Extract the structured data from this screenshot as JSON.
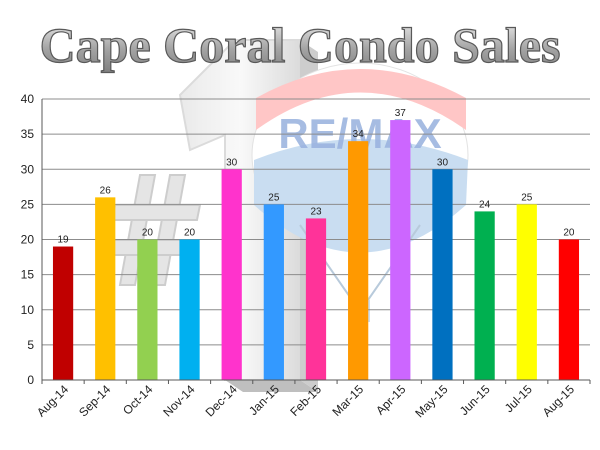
{
  "chart_data": {
    "type": "bar",
    "title": "Cape Coral Condo Sales",
    "xlabel": "",
    "ylabel": "",
    "categories": [
      "Aug-14",
      "Sep-14",
      "Oct-14",
      "Nov-14",
      "Dec-14",
      "Jan-15",
      "Feb-15",
      "Mar-15",
      "Apr-15",
      "May-15",
      "Jun-15",
      "Jul-15",
      "Aug-15"
    ],
    "values": [
      19,
      26,
      20,
      20,
      30,
      25,
      23,
      34,
      37,
      30,
      24,
      25,
      20
    ],
    "bar_colors": [
      "#c00000",
      "#ffc000",
      "#92d050",
      "#00b0f0",
      "#ff33cc",
      "#3399ff",
      "#ff3399",
      "#ff9900",
      "#cc66ff",
      "#0070c0",
      "#00b050",
      "#ffff00",
      "#ff0000"
    ],
    "ylim": [
      0,
      40
    ],
    "yticks": [
      0,
      5,
      10,
      15,
      20,
      25,
      30,
      35,
      40
    ],
    "grid": true,
    "legend": "none"
  },
  "watermark": {
    "brand": "RE/MAX",
    "symbol": "#1"
  }
}
